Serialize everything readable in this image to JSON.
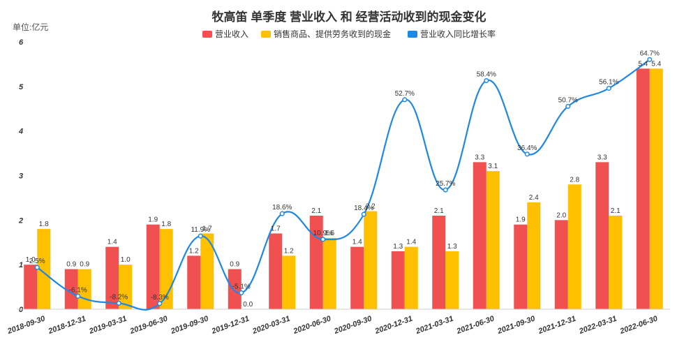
{
  "chart_data": {
    "type": "bar",
    "title": "牧高笛 单季度 营业收入 和 经营活动收到的现金变化",
    "unit_label": "单位:亿元",
    "ylim": [
      0,
      6
    ],
    "yticks": [
      "0",
      "1",
      "2",
      "3",
      "4",
      "5",
      "6"
    ],
    "categories": [
      "2018-09-30",
      "2018-12-31",
      "2019-03-31",
      "2019-06-30",
      "2019-09-30",
      "2019-12-31",
      "2020-03-31",
      "2020-06-30",
      "2020-09-30",
      "2020-12-31",
      "2021-03-31",
      "2021-06-30",
      "2021-09-30",
      "2021-12-31",
      "2022-03-31",
      "2022-06-30"
    ],
    "series": [
      {
        "name": "营业收入",
        "type": "bar",
        "color": "#f05050",
        "values": [
          1.0,
          0.9,
          1.4,
          1.9,
          1.2,
          0.9,
          1.7,
          2.1,
          1.4,
          1.3,
          2.1,
          3.3,
          1.9,
          2.0,
          3.3,
          5.4
        ],
        "labels": [
          "1.0",
          "0.9",
          "1.4",
          "1.9",
          "1.2",
          "0.9",
          "1.7",
          "2.1",
          "1.4",
          "1.3",
          "2.1",
          "3.3",
          "1.9",
          "2.0",
          "3.3",
          "5.4"
        ]
      },
      {
        "name": "销售商品、提供劳务收到的现金",
        "type": "bar",
        "color": "#ffc000",
        "values": [
          1.8,
          0.9,
          1.0,
          1.8,
          1.7,
          0.0,
          1.2,
          1.6,
          2.2,
          1.4,
          1.3,
          3.1,
          2.4,
          2.8,
          2.1,
          5.4
        ],
        "labels": [
          "1.8",
          "0.9",
          "1.0",
          "1.8",
          "1.7",
          "0.0",
          "1.2",
          "1.6",
          "2.2",
          "1.4",
          "1.3",
          "3.1",
          "2.4",
          "2.8",
          "2.1",
          "5.4"
        ]
      },
      {
        "name": "营业收入同比增长率",
        "type": "line",
        "color": "#1e88e5",
        "values": [
          2.5,
          -6.1,
          -8.2,
          -8.3,
          11.9,
          -5.1,
          18.6,
          10.9,
          18.4,
          52.7,
          25.7,
          58.4,
          36.4,
          50.7,
          56.1,
          64.7
        ],
        "labels": [
          "2.5%",
          "-6.1%",
          "-8.2%",
          "-8.3%",
          "11.9%",
          "-5.1%",
          "18.6%",
          "10.9%",
          "18.4%",
          "52.7%",
          "25.7%",
          "58.4%",
          "36.4%",
          "50.7%",
          "56.1%",
          "64.7%"
        ]
      }
    ],
    "line_range": [
      -10,
      70
    ],
    "legend_position": "top-center",
    "grid": false
  }
}
